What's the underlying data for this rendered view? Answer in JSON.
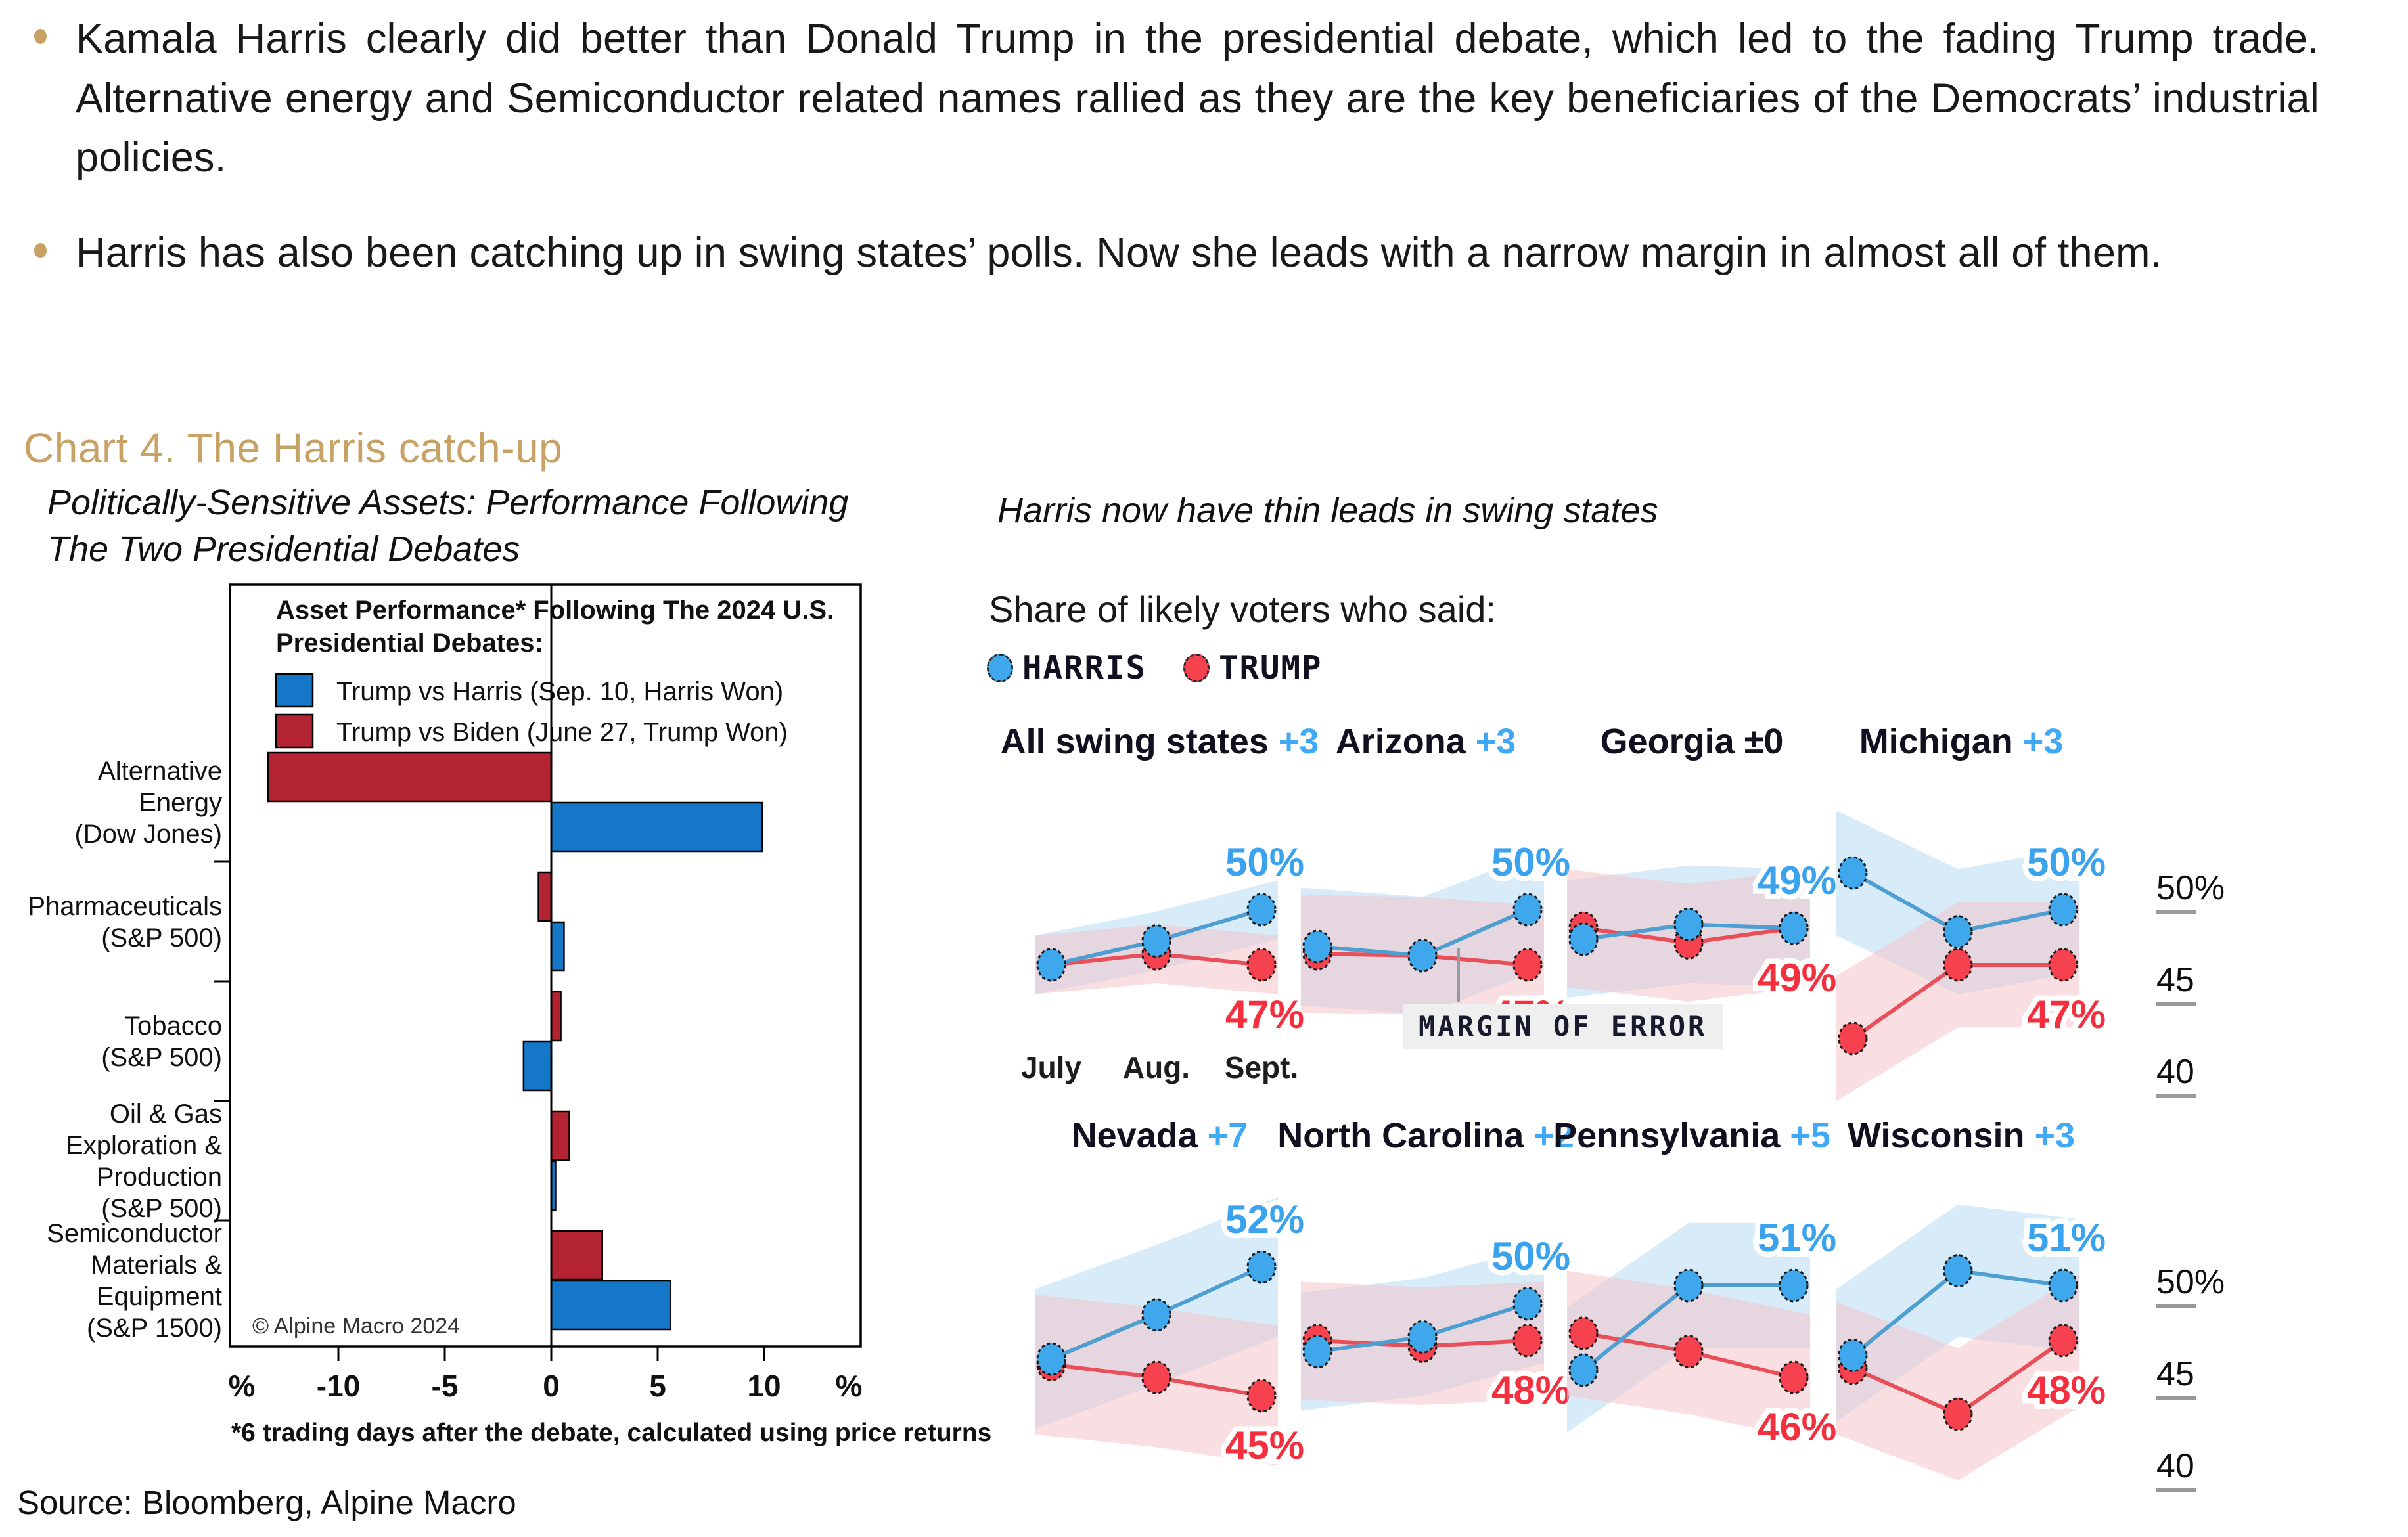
{
  "page": {
    "bullets": [
      {
        "text": "Kamala Harris clearly did better than Donald Trump in the presidential debate, which led to the fading Trump trade. Alternative energy and Semiconductor related names rallied as they are the key beneficiaries of the Democrats’ industrial policies."
      },
      {
        "text": "Harris has also been catching up in swing states’ polls. Now she leads with a narrow margin in almost all of them."
      }
    ],
    "section_title": "Chart 4. The Harris catch-up",
    "left_subtitle": "Politically-Sensitive Assets: Performance Following\nThe Two Presidential Debates",
    "right_subtitle": "Harris now have thin leads in swing states",
    "source": "Source: Bloomberg, Alpine Macro",
    "accent_gold": "#C8A164"
  },
  "chart_data": [
    {
      "type": "bar",
      "title": "Asset Performance* Following The 2024 U.S.\nPresidential Debates:",
      "legend": [
        {
          "label": "Trump vs Harris (Sep. 10, Harris Won)",
          "color": "#1577C8"
        },
        {
          "label": "Trump vs Biden (June 27, Trump Won)",
          "color": "#B42332"
        }
      ],
      "categories": [
        {
          "lines": [
            "Alternative",
            "Energy",
            "(Dow Jones)"
          ]
        },
        {
          "lines": [
            "Pharmaceuticals",
            "(S&P 500)"
          ]
        },
        {
          "lines": [
            "Tobacco",
            "(S&P 500)"
          ]
        },
        {
          "lines": [
            "Oil & Gas",
            "Exploration &",
            "Production",
            "(S&P 500)"
          ]
        },
        {
          "lines": [
            "Semiconductor",
            "Materials &",
            "Equipment",
            "(S&P 1500)"
          ]
        }
      ],
      "series": [
        {
          "name": "Trump vs Harris (Sep. 10, Harris Won)",
          "values": [
            9.9,
            0.6,
            -1.3,
            0.2,
            5.6
          ]
        },
        {
          "name": "Trump vs Biden (June 27, Trump Won)",
          "values": [
            -13.3,
            -0.6,
            0.45,
            0.85,
            2.4
          ]
        }
      ],
      "x_ticks": [
        -10,
        -5,
        0,
        5,
        10
      ],
      "xlim": [
        -15.1,
        14.5
      ],
      "unit": "%",
      "footnote": "*6 trading days after the debate, calculated using price returns",
      "copyright": "© Alpine Macro 2024"
    },
    {
      "type": "line-small-multiples",
      "share_label": "Share of likely voters who said:",
      "legend": [
        {
          "name": "HARRIS",
          "color": "#3FA8EC"
        },
        {
          "name": "TRUMP",
          "color": "#F5424E"
        }
      ],
      "months": [
        "July",
        "Aug.",
        "Sept."
      ],
      "y_axis_labels": [
        "50%",
        "45",
        "40"
      ],
      "margin_of_error_label": "MARGIN OF ERROR",
      "colors": {
        "harris_fill": "#3FA8EC",
        "harris_line": "#4E9ED2",
        "harris_label": "#3BA2EE",
        "harris_band": "#AFD9F2",
        "trump_fill": "#F5424E",
        "trump_line": "#E94F59",
        "trump_label": "#F5303E",
        "trump_band": "#F5BFC6",
        "title_dark": "#10101E"
      },
      "states": [
        {
          "name": "All swing states",
          "lead": "+3",
          "lead_color": "#3FA9F5",
          "harris": [
            47,
            48.3,
            50
          ],
          "trump": [
            47,
            47.6,
            47
          ],
          "harris_label": "50%",
          "trump_label": "47%",
          "band": 1.6,
          "show_months": true
        },
        {
          "name": "Arizona",
          "lead": "+3",
          "lead_color": "#3FA9F5",
          "harris": [
            48,
            47.5,
            50
          ],
          "trump": [
            47.6,
            47.5,
            47
          ],
          "harris_label": "50%",
          "trump_label": "47%",
          "band": 3.2
        },
        {
          "name": "Georgia",
          "lead": "±0",
          "lead_color": "#14141E",
          "harris": [
            48.4,
            49.2,
            49
          ],
          "trump": [
            49,
            48.2,
            49
          ],
          "harris_label": "49%",
          "trump_label": "49%",
          "band": 3.2
        },
        {
          "name": "Michigan",
          "lead": "+3",
          "lead_color": "#3FA9F5",
          "harris": [
            52,
            48.8,
            50
          ],
          "trump": [
            43,
            47,
            47
          ],
          "harris_label": "50%",
          "trump_label": "47%",
          "band": 3.4
        },
        {
          "name": "Nevada",
          "lead": "+7",
          "lead_color": "#3FA9F5",
          "harris": [
            47,
            49.4,
            52
          ],
          "trump": [
            46.7,
            46,
            45
          ],
          "harris_label": "52%",
          "trump_label": "45%",
          "band": 3.8
        },
        {
          "name": "North Carolina",
          "lead": "+2",
          "lead_color": "#3FA9F5",
          "harris": [
            47.4,
            48.2,
            50
          ],
          "trump": [
            48,
            47.7,
            48
          ],
          "harris_label": "50%",
          "trump_label": "48%",
          "band": 3.2
        },
        {
          "name": "Pennsylvania",
          "lead": "+5",
          "lead_color": "#3FA9F5",
          "harris": [
            46.4,
            51,
            51
          ],
          "trump": [
            48.4,
            47.4,
            46
          ],
          "harris_label": "51%",
          "trump_label": "46%",
          "band": 3.4
        },
        {
          "name": "Wisconsin",
          "lead": "+3",
          "lead_color": "#3FA9F5",
          "harris": [
            47.2,
            51.8,
            51
          ],
          "trump": [
            46.5,
            44,
            48
          ],
          "harris_label": "51%",
          "trump_label": "48%",
          "band": 3.6
        }
      ]
    }
  ]
}
